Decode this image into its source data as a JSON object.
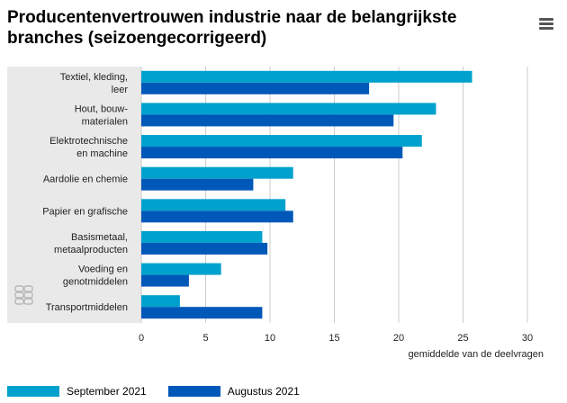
{
  "title": "Producentenvertrouwen industrie naar de belangrijkste branches (seizoengecorrigeerd)",
  "menu_icon": "hamburger-menu-icon",
  "logo_icon": "cbs-logo-icon",
  "colors": {
    "september": "#00a1cd",
    "augustus": "#0058b8",
    "panel": "#e9e9e9",
    "grid": "#cccccc"
  },
  "chart_data": {
    "type": "bar",
    "orientation": "horizontal",
    "title": "Producentenvertrouwen industrie naar de belangrijkste branches (seizoengecorrigeerd)",
    "xlabel": "gemiddelde van de deelvragen",
    "ylabel": "",
    "xlim": [
      0,
      30
    ],
    "xticks": [
      "0",
      "5",
      "10",
      "15",
      "20",
      "25",
      "30"
    ],
    "categories": [
      [
        "Textiel, kleding,",
        "leer"
      ],
      [
        "Hout, bouw-",
        "materialen"
      ],
      [
        "Elektrotechnische",
        "en machine"
      ],
      [
        "Aardolie en chemie"
      ],
      [
        "Papier en grafische"
      ],
      [
        "Basismetaal,",
        "metaalproducten"
      ],
      [
        "Voeding en",
        "genotmiddelen"
      ],
      [
        "Transportmiddelen"
      ]
    ],
    "series": [
      {
        "name": "September 2021",
        "values": [
          25.7,
          22.9,
          21.8,
          11.8,
          11.2,
          9.4,
          6.2,
          3.0
        ]
      },
      {
        "name": "Augustus 2021",
        "values": [
          17.7,
          19.6,
          20.3,
          8.7,
          11.8,
          9.8,
          3.7,
          9.4
        ]
      }
    ],
    "legend_position": "bottom-left"
  }
}
